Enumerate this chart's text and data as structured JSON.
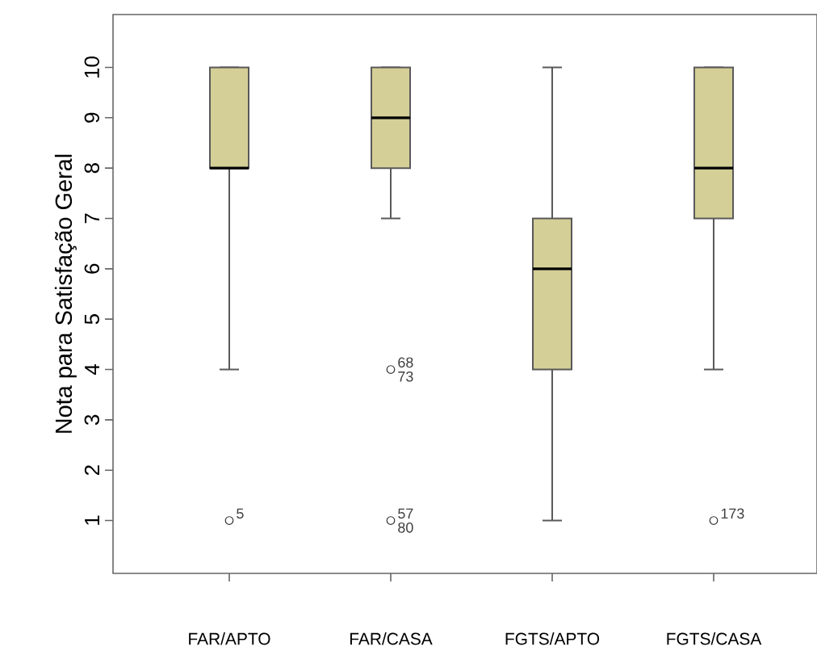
{
  "chart_data": {
    "type": "box",
    "ylabel": "Nota para Satisfação Geral",
    "categories": [
      "FAR/APTO",
      "FAR/CASA",
      "FGTS/APTO",
      "FGTS/CASA"
    ],
    "boxes": [
      {
        "low": 4,
        "q1": 8,
        "median": 8,
        "q3": 10,
        "high": 10,
        "outliers": [
          1
        ]
      },
      {
        "low": 7,
        "q1": 8,
        "median": 9,
        "q3": 10,
        "high": 10,
        "outliers": [
          4,
          1
        ]
      },
      {
        "low": 1,
        "q1": 4,
        "median": 6,
        "q3": 7,
        "high": 10
      },
      {
        "low": 4,
        "q1": 7,
        "median": 8,
        "q3": 10,
        "high": 10,
        "outliers": [
          1
        ]
      }
    ],
    "color": "#d4cf97",
    "ylim": [
      -0.05,
      11.05
    ],
    "yticks": [
      1,
      2,
      3,
      4,
      5,
      6,
      7,
      8,
      9,
      10
    ],
    "grid": false,
    "annotations": [
      "5",
      "68",
      "73",
      "57",
      "80",
      "173"
    ]
  }
}
